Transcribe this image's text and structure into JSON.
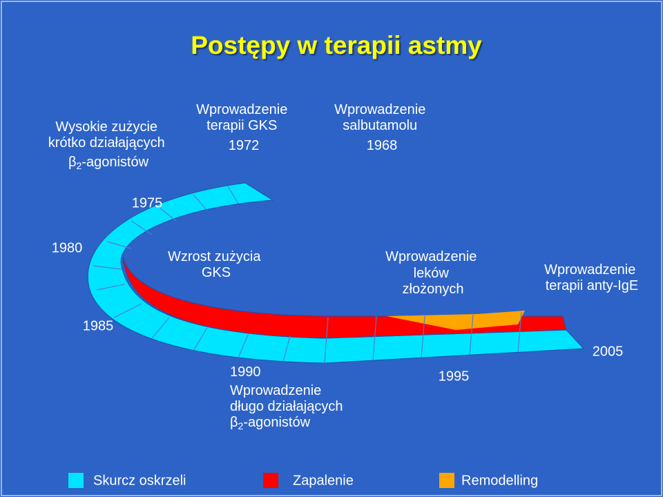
{
  "title": "Postępy w terapii astmy",
  "annotations": {
    "high_use": [
      "Wysokie zużycie",
      "krótko działających",
      {
        "symbol": "β",
        "sub": "2",
        "text": "-agonistów"
      }
    ],
    "gks": [
      "Wprowadzenie",
      "terapii GKS",
      "1972"
    ],
    "salbutamol": [
      "Wprowadzenie",
      "salbutamolu",
      "1968"
    ],
    "y1975": "1975",
    "y1980": "1980",
    "gks_use": [
      "Wzrost zużycia",
      "GKS"
    ],
    "combo": [
      "Wprowadzenie",
      "leków",
      "złożonych"
    ],
    "anti_ige": [
      "Wprowadzenie",
      "terapii anty-IgE"
    ],
    "y1985": "1985",
    "laba": [
      "1990",
      "Wprowadzenie",
      "długo działających",
      {
        "symbol": "β",
        "sub": "2",
        "text": "-agonistów"
      }
    ],
    "y1995": "1995",
    "y2005": "2005"
  },
  "legend": [
    "Skurcz oskrzeli",
    "Zapalenie",
    "Remodelling"
  ]
}
